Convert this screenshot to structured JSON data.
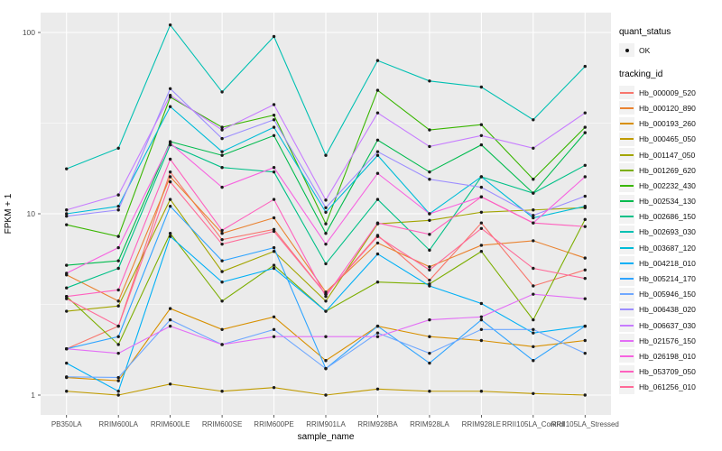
{
  "chart_data": {
    "type": "line",
    "title": "",
    "xlabel": "sample_name",
    "ylabel": "FPKM + 1",
    "y_scale": "log10",
    "y_major_ticks": [
      1,
      10,
      100
    ],
    "y_minor_gridlines": [
      3.162,
      31.62
    ],
    "ylim": [
      0.8,
      128
    ],
    "grid": "on",
    "legend_position": "right",
    "categories": [
      "PB350LA",
      "RRIM600LA",
      "RRIM600LE",
      "RRIM600SE",
      "RRIM600PE",
      "RRIM901LA",
      "RRIM928BA",
      "RRIM928LA",
      "RRIM928LE",
      "RRII105LA_Control",
      "RRII105LA_Stressed"
    ],
    "legend": {
      "quant_status_title": "quant_status",
      "quant_status_entries": [
        "OK"
      ],
      "tracking_id_title": "tracking_id"
    },
    "series": [
      {
        "name": "Hb_000009_520",
        "color": "#F8766D",
        "values": [
          1.8,
          2.4,
          17,
          7.2,
          8.2,
          3.6,
          7.6,
          4.3,
          8.9,
          4.0,
          4.9
        ]
      },
      {
        "name": "Hb_000120_890",
        "color": "#EA8331",
        "values": [
          4.6,
          3.3,
          16,
          7.8,
          9.5,
          3.7,
          6.9,
          5.1,
          6.7,
          7.1,
          5.7
        ]
      },
      {
        "name": "Hb_000193_260",
        "color": "#D89000",
        "values": [
          1.25,
          1.2,
          3.0,
          2.3,
          2.7,
          1.55,
          2.4,
          2.1,
          2.0,
          1.85,
          2.0
        ]
      },
      {
        "name": "Hb_000465_050",
        "color": "#C09B00",
        "values": [
          1.05,
          1.0,
          1.15,
          1.05,
          1.1,
          1.0,
          1.08,
          1.05,
          1.05,
          1.02,
          1.0
        ]
      },
      {
        "name": "Hb_001147_050",
        "color": "#A3A500",
        "values": [
          2.9,
          3.1,
          12,
          4.8,
          6.2,
          3.3,
          8.8,
          9.2,
          10.2,
          10.5,
          10.8
        ]
      },
      {
        "name": "Hb_001269_620",
        "color": "#7CAE00",
        "values": [
          3.5,
          1.9,
          7.8,
          3.3,
          5.2,
          2.9,
          4.2,
          4.1,
          6.2,
          2.6,
          9.3
        ]
      },
      {
        "name": "Hb_002232_430",
        "color": "#39B600",
        "values": [
          8.7,
          7.5,
          44,
          30,
          35,
          8.8,
          48,
          29,
          31,
          15.5,
          30
        ]
      },
      {
        "name": "Hb_002534_130",
        "color": "#00BB4E",
        "values": [
          5.2,
          5.5,
          25,
          21,
          27,
          7.8,
          25.5,
          17,
          24,
          13,
          28
        ]
      },
      {
        "name": "Hb_002686_150",
        "color": "#00C087",
        "values": [
          3.9,
          5.0,
          24,
          18,
          17,
          5.3,
          12,
          6.3,
          16,
          13,
          18.5
        ]
      },
      {
        "name": "Hb_002693_030",
        "color": "#00C0B2",
        "values": [
          17.7,
          23,
          110,
          47,
          95,
          21,
          70,
          54,
          50,
          33,
          65
        ]
      },
      {
        "name": "Hb_003687_120",
        "color": "#00BCD8",
        "values": [
          10,
          11,
          39,
          22,
          30,
          10.2,
          21,
          10,
          16,
          9.5,
          11
        ]
      },
      {
        "name": "Hb_004218_010",
        "color": "#00B0F6",
        "values": [
          1.5,
          1.05,
          7.5,
          4.2,
          5.0,
          2.9,
          6.0,
          4.0,
          3.2,
          2.2,
          2.4
        ]
      },
      {
        "name": "Hb_005214_170",
        "color": "#2FA4FF",
        "values": [
          1.8,
          2.1,
          11,
          5.5,
          6.5,
          1.4,
          2.4,
          1.5,
          2.6,
          1.55,
          2.4
        ]
      },
      {
        "name": "Hb_005946_150",
        "color": "#6FA8FF",
        "values": [
          1.26,
          1.25,
          2.6,
          1.9,
          2.3,
          1.4,
          2.2,
          1.7,
          2.3,
          2.3,
          1.7
        ]
      },
      {
        "name": "Hb_006438_020",
        "color": "#9C8DFF",
        "values": [
          9.7,
          10.5,
          49,
          26,
          33,
          10.8,
          22,
          15.5,
          14,
          9.8,
          12.5
        ]
      },
      {
        "name": "Hb_006637_030",
        "color": "#C77CFF",
        "values": [
          10.5,
          12.7,
          45,
          29,
          40,
          11.9,
          36,
          23.5,
          27,
          23,
          36
        ]
      },
      {
        "name": "Hb_021576_150",
        "color": "#E36EF6",
        "values": [
          1.8,
          1.7,
          2.4,
          1.9,
          2.1,
          2.1,
          2.1,
          2.6,
          2.7,
          3.6,
          3.4
        ]
      },
      {
        "name": "Hb_026198_010",
        "color": "#F763E0",
        "values": [
          4.7,
          6.5,
          24.5,
          14,
          18,
          6.8,
          16.7,
          10,
          12.4,
          8.9,
          16
        ]
      },
      {
        "name": "Hb_053709_050",
        "color": "#FF61BE",
        "values": [
          3.5,
          3.8,
          20,
          8.1,
          12,
          3.5,
          8.9,
          7.7,
          12.4,
          8.9,
          8.5
        ]
      },
      {
        "name": "Hb_061256_010",
        "color": "#FF6A98",
        "values": [
          3.4,
          2.4,
          15,
          6.8,
          8.0,
          3.6,
          7.5,
          4.9,
          8.3,
          5.0,
          4.4
        ]
      }
    ]
  },
  "style": {
    "panel_background": "#EBEBEB",
    "grid_color": "#FFFFFF",
    "point_color": "#1A1A1A",
    "tick_color": "#333333",
    "tick_label_color": "#4D4D4D",
    "axis_title_color": "#000000"
  }
}
